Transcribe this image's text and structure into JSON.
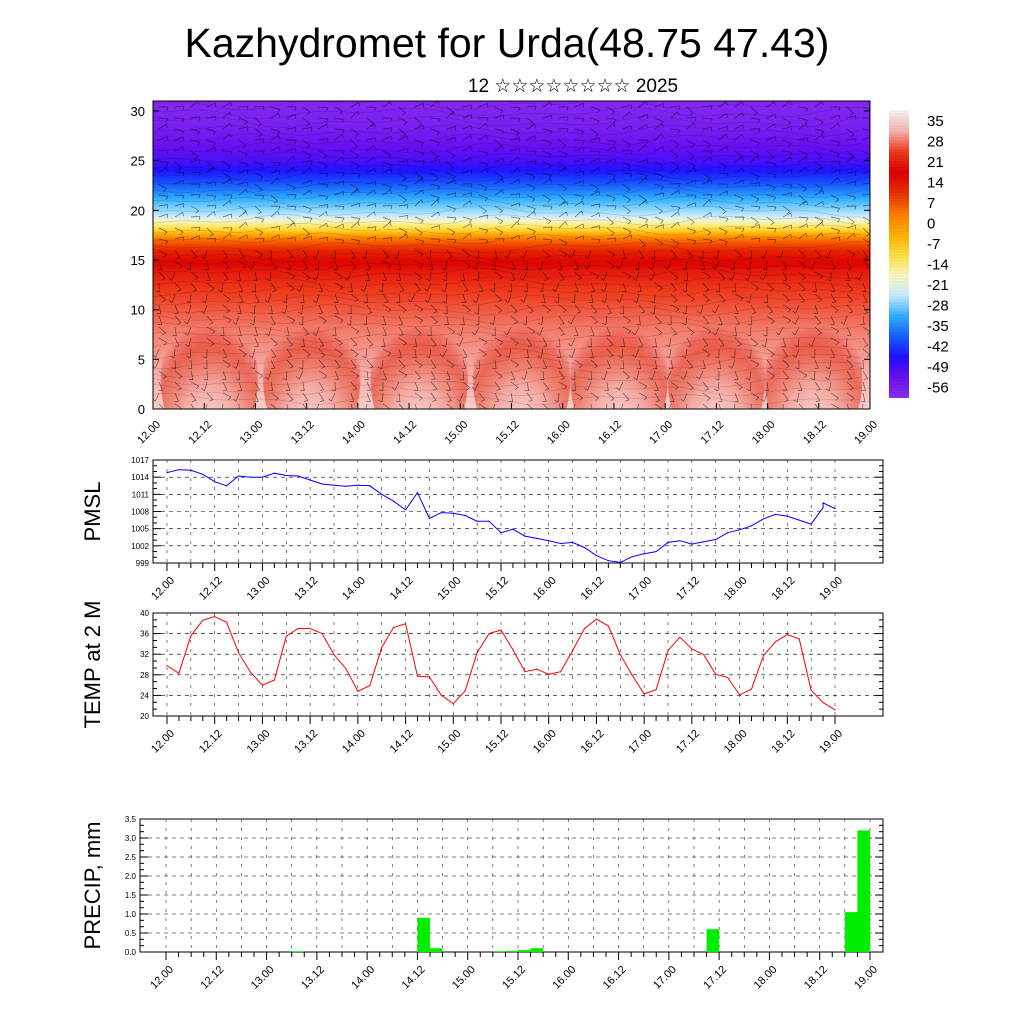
{
  "title": "Kazhydromet for Urda(48.75 47.43)",
  "subtitle": "12 ☆☆☆☆☆☆☆☆ 2025",
  "time_labels": [
    "12.00",
    "12.12",
    "13.00",
    "13.12",
    "14.00",
    "14.12",
    "15.00",
    "15.12",
    "16.00",
    "16.12",
    "17.00",
    "17.12",
    "18.00",
    "18.12",
    "19.00"
  ],
  "chart_data": [
    {
      "type": "heatmap",
      "name": "cross-section",
      "ylim": [
        0,
        31
      ],
      "yticks": [
        0,
        5,
        10,
        15,
        20,
        25,
        30
      ],
      "colorbar_labels": [
        "35",
        "28",
        "21",
        "14",
        "7",
        "0",
        "-7",
        "-14",
        "-21",
        "-28",
        "-35",
        "-42",
        "-49",
        "-56"
      ],
      "colormap": [
        "#f4f4f4",
        "#f6b3ae",
        "#ee3a1c",
        "#dd0000",
        "#e83000",
        "#ff7a00",
        "#ffb000",
        "#ffe040",
        "#fff9c0",
        "#c8ecff",
        "#30b0ff",
        "#1860ff",
        "#2010ff",
        "#6a10f0",
        "#8a30f0"
      ],
      "value_range": [
        -58,
        38
      ],
      "profile": {
        "height_km": [
          0,
          2,
          5,
          8,
          10,
          12,
          14,
          16,
          17,
          18,
          19.5,
          21,
          23,
          25,
          27,
          29,
          31
        ],
        "temperature_c": [
          34,
          32,
          30,
          28,
          26,
          24,
          20,
          12,
          5,
          -8,
          -24,
          -30,
          -40,
          -48,
          -52,
          -55,
          -56
        ]
      },
      "note_on_surface": "surface warm cells follow the 2 m temperature diurnal cycle"
    },
    {
      "type": "line",
      "name": "PMSL",
      "ylabel": "PMSL",
      "ylim": [
        999,
        1017
      ],
      "yticks": [
        999,
        1002,
        1005,
        1008,
        1011,
        1014,
        1017
      ],
      "color": "#0000ff",
      "x": [
        0,
        3,
        6,
        9,
        12,
        15,
        18,
        21,
        24,
        27,
        30,
        33,
        36,
        39,
        42,
        45,
        48,
        51,
        54,
        57,
        60,
        63,
        66,
        69,
        72,
        75,
        78,
        81,
        84,
        87,
        90,
        93,
        96,
        99,
        102,
        105,
        108,
        111,
        114,
        117,
        120,
        123,
        126,
        129,
        132,
        135,
        138,
        141,
        144,
        147,
        150,
        153,
        156,
        159,
        162,
        165,
        168
      ],
      "values": [
        1014.8,
        1015.3,
        1015.2,
        1014.5,
        1013.2,
        1012.5,
        1014.2,
        1014.0,
        1014.0,
        1014.7,
        1014.3,
        1014.2,
        1013.5,
        1012.8,
        1012.6,
        1012.4,
        1012.6,
        1012.5,
        1011.0,
        1009.8,
        1008.3,
        1011.3,
        1006.8,
        1007.8,
        1007.7,
        1007.3,
        1006.3,
        1006.3,
        1004.3,
        1004.9,
        1003.7,
        1003.3,
        1002.9,
        1002.4,
        1002.6,
        1001.7,
        1000.3,
        999.4,
        999.1,
        1000.1,
        1000.6,
        1001.0,
        1002.6,
        1002.9,
        1002.3,
        1002.7,
        1003.1,
        1004.3,
        1004.8,
        1005.5,
        1006.7,
        1007.5,
        1007.2,
        1006.5,
        1005.8,
        1008.7,
        1009.5
      ],
      "x_last": 168,
      "values_tail": [
        1008.5
      ]
    },
    {
      "type": "line",
      "name": "TEMP at 2 M",
      "ylabel": "TEMP at 2 M",
      "ylim": [
        20,
        40
      ],
      "yticks": [
        20,
        24,
        28,
        32,
        36,
        40
      ],
      "color": "#ff0000",
      "x": [
        0,
        3,
        6,
        9,
        12,
        15,
        18,
        21,
        24,
        27,
        30,
        33,
        36,
        39,
        42,
        45,
        48,
        51,
        54,
        57,
        60,
        63,
        66,
        69,
        72,
        75,
        78,
        81,
        84,
        87,
        90,
        93,
        96,
        99,
        102,
        105,
        108,
        111,
        114,
        117,
        120,
        123,
        126,
        129,
        132,
        135,
        138,
        141,
        144,
        147,
        150,
        153,
        156,
        159,
        162,
        165,
        168
      ],
      "values": [
        29.8,
        28.3,
        35.6,
        38.6,
        39.3,
        38.2,
        32.3,
        28.5,
        26.0,
        27.0,
        35.5,
        37.0,
        37.0,
        36.0,
        31.9,
        29.2,
        24.8,
        25.9,
        33.3,
        37.2,
        37.9,
        27.7,
        27.6,
        24.0,
        22.4,
        24.9,
        32.3,
        36.0,
        36.7,
        32.9,
        28.6,
        29.1,
        28.1,
        28.6,
        32.7,
        37.0,
        38.8,
        37.5,
        31.9,
        27.9,
        24.3,
        25.1,
        32.7,
        35.3,
        33.0,
        31.9,
        28.1,
        27.5,
        24.1,
        25.2,
        31.7,
        34.4,
        35.8,
        35.0,
        25.0,
        22.6,
        21.2
      ]
    },
    {
      "type": "bar",
      "name": "PRECIP, mm",
      "ylabel": "PRECIP, mm",
      "ylim": [
        0,
        3.5
      ],
      "yticks": [
        "0.0",
        "0.5",
        "1.0",
        "1.5",
        "2.0",
        "2.5",
        "3.0",
        "3.5"
      ],
      "color": "#00ee00",
      "x": [
        33,
        63,
        66,
        81,
        84,
        87,
        90,
        132,
        165,
        168
      ],
      "values": [
        0.02,
        0.9,
        0.1,
        0.02,
        0.03,
        0.05,
        0.1,
        0.6,
        1.05,
        3.2
      ]
    }
  ]
}
